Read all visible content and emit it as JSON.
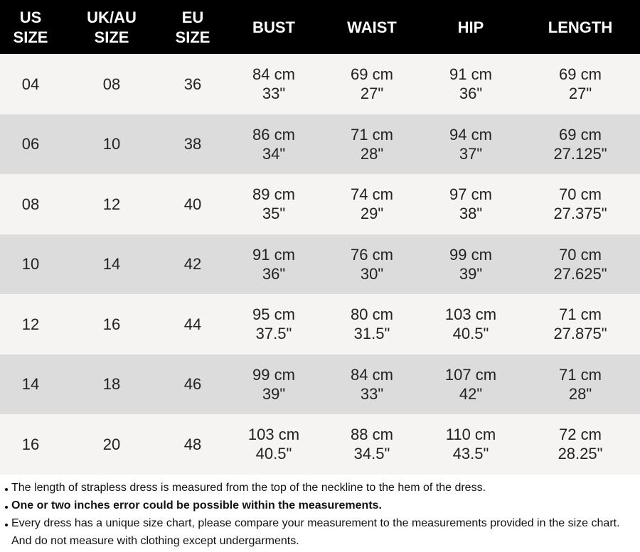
{
  "table": {
    "header": [
      [
        "US",
        "SIZE"
      ],
      [
        "UK/AU",
        "SIZE"
      ],
      [
        "EU",
        "SIZE"
      ],
      [
        "BUST"
      ],
      [
        "WAIST"
      ],
      [
        "HIP"
      ],
      [
        "LENGTH"
      ]
    ],
    "rows": [
      [
        "04",
        "08",
        "36",
        [
          "84 cm",
          "33\""
        ],
        [
          "69 cm",
          "27\""
        ],
        [
          "91 cm",
          "36\""
        ],
        [
          "69 cm",
          "27\""
        ]
      ],
      [
        "06",
        "10",
        "38",
        [
          "86 cm",
          "34\""
        ],
        [
          "71 cm",
          "28\""
        ],
        [
          "94 cm",
          "37\""
        ],
        [
          "69 cm",
          "27.125\""
        ]
      ],
      [
        "08",
        "12",
        "40",
        [
          "89 cm",
          "35\""
        ],
        [
          "74 cm",
          "29\""
        ],
        [
          "97 cm",
          "38\""
        ],
        [
          "70 cm",
          "27.375\""
        ]
      ],
      [
        "10",
        "14",
        "42",
        [
          "91 cm",
          "36\""
        ],
        [
          "76 cm",
          "30\""
        ],
        [
          "99 cm",
          "39\""
        ],
        [
          "70 cm",
          "27.625\""
        ]
      ],
      [
        "12",
        "16",
        "44",
        [
          "95 cm",
          "37.5\""
        ],
        [
          "80 cm",
          "31.5\""
        ],
        [
          "103 cm",
          "40.5\""
        ],
        [
          "71 cm",
          "27.875\""
        ]
      ],
      [
        "14",
        "18",
        "46",
        [
          "99 cm",
          "39\""
        ],
        [
          "84 cm",
          "33\""
        ],
        [
          "107 cm",
          "42\""
        ],
        [
          "71 cm",
          "28\""
        ]
      ],
      [
        "16",
        "20",
        "48",
        [
          "103 cm",
          "40.5\""
        ],
        [
          "88 cm",
          "34.5\""
        ],
        [
          "110 cm",
          "43.5\""
        ],
        [
          "72 cm",
          "28.25\""
        ]
      ]
    ]
  },
  "notes": [
    "The length of strapless dress is measured from the top of the neckline to the hem of the dress.",
    "One or two inches error could be possible within the measurements.",
    "Every dress has a unique size chart, please compare your measurement to the measurements provided in the size chart. And do not measure with clothing except undergarments."
  ]
}
